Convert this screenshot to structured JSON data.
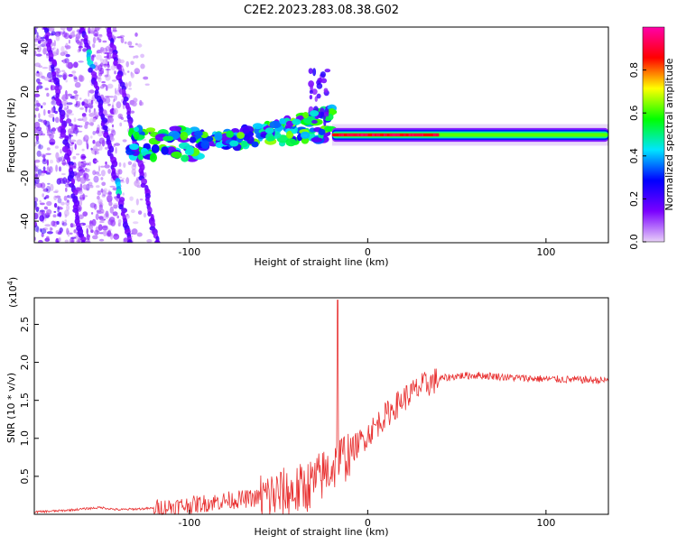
{
  "title": "C2E2.2023.283.08.38.G02",
  "chart_data": [
    {
      "type": "heatmap",
      "xlabel": "Height of straight line (km)",
      "ylabel": "Frequency (Hz)",
      "xlim": [
        -187,
        135
      ],
      "ylim": [
        -50,
        50
      ],
      "xticks": [
        -100,
        0,
        100
      ],
      "xtick_labels": [
        "-100",
        "0",
        "100"
      ],
      "yticks": [
        -40,
        -20,
        0,
        20,
        40
      ],
      "ytick_labels": [
        "-40",
        "-20",
        "0",
        "20",
        "40"
      ],
      "colorbar": {
        "label": "Normalized spectral amplitude",
        "range": [
          0,
          1
        ],
        "ticks": [
          0.0,
          0.2,
          0.4,
          0.6,
          0.8
        ],
        "tick_labels": [
          "0.0",
          "0.2",
          "0.4",
          "0.6",
          "0.8"
        ],
        "colormap": [
          "#e8d0f8",
          "#7a00ff",
          "#0000ff",
          "#00e5ff",
          "#00ff00",
          "#ffff00",
          "#ff0000",
          "#ff00aa"
        ]
      },
      "features": {
        "scatter_region_x": [
          -187,
          -120
        ],
        "streaks": [
          {
            "x_top": -160,
            "x_bottom": -133
          },
          {
            "x_top": -180,
            "x_bottom": -160
          },
          {
            "x_top": -145,
            "x_bottom": -118
          }
        ],
        "wavy_band_x": [
          -135,
          -20
        ],
        "ridge_x": [
          -20,
          135
        ],
        "ridge_peak_x": [
          -20,
          40
        ],
        "branch_points": [
          {
            "x": -100,
            "y": -8
          },
          {
            "x": -75,
            "y": -4
          },
          {
            "x": -55,
            "y": 2
          },
          {
            "x": -40,
            "y": 6
          },
          {
            "x": -30,
            "y": 10
          }
        ]
      }
    },
    {
      "type": "line",
      "xlabel": "Height of straight line (km)",
      "ylabel": "SNR (10 * v/v)",
      "multiplier_label": "(x10",
      "multiplier_exp": "4",
      "multiplier_close": ")",
      "xlim": [
        -187,
        135
      ],
      "ylim": [
        0,
        2.85
      ],
      "xticks": [
        -100,
        0,
        100
      ],
      "xtick_labels": [
        "-100",
        "0",
        "100"
      ],
      "yticks": [
        0.5,
        1.0,
        1.5,
        2.0,
        2.5
      ],
      "ytick_labels": [
        "0.5",
        "1.0",
        "1.5",
        "2.0",
        "2.5"
      ],
      "color": "#e83030",
      "trend": {
        "x": [
          -187,
          -170,
          -150,
          -140,
          -120,
          -100,
          -80,
          -60,
          -40,
          -30,
          -20,
          -10,
          0,
          10,
          20,
          30,
          40,
          50,
          60,
          70,
          80,
          100,
          120,
          135
        ],
        "y": [
          0.03,
          0.05,
          0.09,
          0.06,
          0.08,
          0.12,
          0.18,
          0.22,
          0.3,
          0.42,
          0.62,
          0.82,
          1.05,
          1.3,
          1.52,
          1.68,
          1.78,
          1.82,
          1.83,
          1.82,
          1.8,
          1.78,
          1.77,
          1.76
        ]
      },
      "spike": {
        "x": -17,
        "y": 2.82
      }
    }
  ]
}
